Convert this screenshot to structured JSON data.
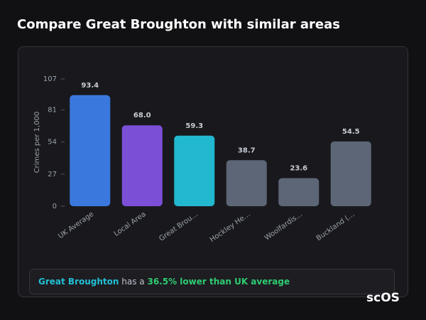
{
  "header": {
    "title": "Compare Great Broughton with similar areas"
  },
  "chart_data": {
    "type": "bar",
    "y_label": "Crimes per 1,000",
    "categories": [
      "UK Average",
      "Local Area",
      "Great Brou…",
      "Hockley He…",
      "Woolfardis…",
      "Buckland (…"
    ],
    "values": [
      93.4,
      68.0,
      59.3,
      38.7,
      23.6,
      54.5
    ],
    "value_labels": [
      "93.4",
      "68.0",
      "59.3",
      "38.7",
      "23.6",
      "54.5"
    ],
    "colors": [
      "#3b78dd",
      "#7b4fd6",
      "#22b8cf",
      "#5c6677",
      "#5c6677",
      "#5c6677"
    ],
    "ylim": [
      0,
      107
    ],
    "yticks": [
      0,
      27,
      54,
      81,
      107
    ],
    "grid": false
  },
  "footer": {
    "area": "Great Broughton",
    "middle": "has a",
    "highlight": "36.5% lower than UK average"
  },
  "watermark": "scOS"
}
